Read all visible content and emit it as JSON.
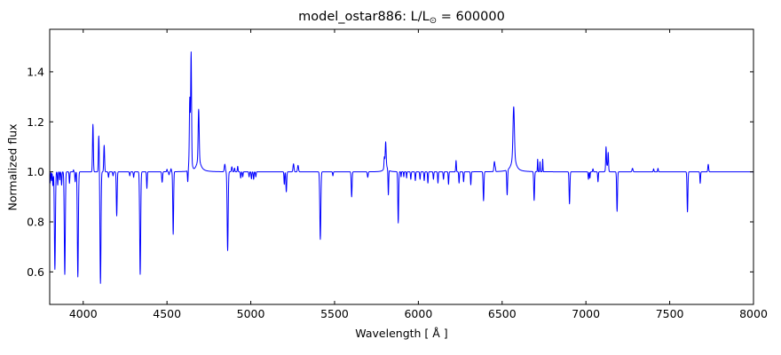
{
  "title": {
    "prefix": "model_ostar886: L/L",
    "subscript": "⊙",
    "suffix": " = 600000"
  },
  "chart_data": {
    "type": "line",
    "title": "model_ostar886: L/L_sun = 600000",
    "xlabel": "Wavelength [ Å ]",
    "ylabel": "Normalized flux",
    "xlim": [
      3800,
      8000
    ],
    "ylim": [
      0.47,
      1.57
    ],
    "x_ticks": [
      4000,
      4500,
      5000,
      5500,
      6000,
      6500,
      7000,
      7500,
      8000
    ],
    "x_tick_labels": [
      "4000",
      "4500",
      "5000",
      "5500",
      "6000",
      "6500",
      "7000",
      "7500",
      "8000"
    ],
    "y_ticks": [
      0.6,
      0.8,
      1.0,
      1.2,
      1.4
    ],
    "y_tick_labels": [
      "0.6",
      "0.8",
      "1.0",
      "1.2",
      "1.4"
    ],
    "grid": false,
    "legend": "none",
    "line_color": "#0000ff",
    "frame_color": "#000000",
    "continuum_flux": 1.0,
    "sample_step_angstrom": 1,
    "features": [
      {
        "name": "abs-3797",
        "c": 3797,
        "amp": -0.03,
        "sigma": 1.5,
        "profile": "gauss"
      },
      {
        "name": "abs-3802",
        "c": 3802,
        "amp": -0.045,
        "sigma": 2.0,
        "profile": "gauss"
      },
      {
        "name": "abs-3811",
        "c": 3811,
        "amp": -0.035,
        "sigma": 1.5,
        "profile": "gauss"
      },
      {
        "name": "abs-3819",
        "c": 3819,
        "amp": -0.055,
        "sigma": 2.0,
        "profile": "gauss"
      },
      {
        "name": "H9-3835",
        "c": 3831,
        "amp": -0.39,
        "sigma": 3.0,
        "profile": "gauss"
      },
      {
        "name": "abs-3848",
        "c": 3848,
        "amp": -0.053,
        "sigma": 2.0,
        "profile": "gauss"
      },
      {
        "name": "abs-3860",
        "c": 3860,
        "amp": -0.032,
        "sigma": 1.5,
        "profile": "gauss"
      },
      {
        "name": "abs-3871",
        "c": 3871,
        "amp": -0.053,
        "sigma": 2.0,
        "profile": "gauss"
      },
      {
        "name": "H8-3889",
        "c": 3890,
        "amp": -0.41,
        "sigma": 3.0,
        "profile": "gauss"
      },
      {
        "name": "abs-3918",
        "c": 3918,
        "amp": -0.046,
        "sigma": 2.0,
        "profile": "gauss"
      },
      {
        "name": "em-3942",
        "c": 3942,
        "amp": 0.008,
        "sigma": 1.5,
        "profile": "gauss"
      },
      {
        "name": "abs-3952",
        "c": 3952,
        "amp": -0.04,
        "sigma": 2.0,
        "profile": "gauss"
      },
      {
        "name": "Heps-3970",
        "c": 3968,
        "amp": -0.42,
        "sigma": 3.0,
        "profile": "gauss"
      },
      {
        "name": "NIV-4058-em",
        "c": 4058,
        "amp": 0.19,
        "sigma": 2.5,
        "profile": "gauss"
      },
      {
        "name": "SiIV-4089-em",
        "c": 4093,
        "amp": 0.145,
        "sigma": 2.5,
        "profile": "gauss"
      },
      {
        "name": "Hdelta-4101",
        "c": 4103,
        "amp": -0.446,
        "sigma": 3.0,
        "profile": "gauss"
      },
      {
        "name": "SiIV-4116-em",
        "c": 4125,
        "amp": 0.106,
        "sigma": 2.5,
        "profile": "gauss"
      },
      {
        "name": "abs-4151",
        "c": 4151,
        "amp": -0.022,
        "sigma": 2.0,
        "profile": "gauss"
      },
      {
        "name": "abs-4178",
        "c": 4178,
        "amp": -0.016,
        "sigma": 2.0,
        "profile": "gauss"
      },
      {
        "name": "HeII-4200",
        "c": 4200,
        "amp": -0.176,
        "sigma": 2.5,
        "profile": "gauss"
      },
      {
        "name": "abs-4278",
        "c": 4278,
        "amp": -0.016,
        "sigma": 2.0,
        "profile": "gauss"
      },
      {
        "name": "abs-4301",
        "c": 4301,
        "amp": -0.022,
        "sigma": 2.0,
        "profile": "gauss"
      },
      {
        "name": "Hgamma-4340",
        "c": 4340,
        "amp": -0.41,
        "sigma": 3.0,
        "profile": "gauss"
      },
      {
        "name": "abs-4380",
        "c": 4380,
        "amp": -0.066,
        "sigma": 2.0,
        "profile": "gauss"
      },
      {
        "name": "HeI-4471",
        "c": 4471,
        "amp": -0.042,
        "sigma": 2.5,
        "profile": "gauss"
      },
      {
        "name": "em-4500",
        "c": 4500,
        "amp": 0.01,
        "sigma": 2.0,
        "profile": "gauss"
      },
      {
        "name": "abs-4512",
        "c": 4512,
        "amp": -0.012,
        "sigma": 2.0,
        "profile": "gauss"
      },
      {
        "name": "em-4524",
        "c": 4524,
        "amp": 0.012,
        "sigma": 2.0,
        "profile": "gauss"
      },
      {
        "name": "HeII-4542",
        "c": 4537,
        "amp": -0.25,
        "sigma": 2.5,
        "profile": "gauss"
      },
      {
        "name": "abs-4624",
        "c": 4624,
        "amp": -0.05,
        "sigma": 2.0,
        "profile": "gauss"
      },
      {
        "name": "NIII-blend-base",
        "c": 4640,
        "amp": 0.06,
        "sigma": 8.0,
        "profile": "gauss"
      },
      {
        "name": "NIII-4634-em",
        "c": 4636,
        "amp": 0.24,
        "sigma": 2.5,
        "profile": "gauss"
      },
      {
        "name": "NIII-4640-em",
        "c": 4644,
        "amp": 0.42,
        "sigma": 2.5,
        "profile": "gauss"
      },
      {
        "name": "HeII-4686-em",
        "c": 4689,
        "amp": 0.2,
        "sigma": 3.0,
        "profile": "gauss"
      },
      {
        "name": "HeII-4686-wings",
        "c": 4689,
        "amp": 0.05,
        "sigma": 15.0,
        "profile": "lorentz"
      },
      {
        "name": "em-4845",
        "c": 4845,
        "amp": 0.03,
        "sigma": 3.0,
        "profile": "gauss"
      },
      {
        "name": "Hbeta-4861",
        "c": 4862,
        "amp": -0.315,
        "sigma": 3.0,
        "profile": "gauss"
      },
      {
        "name": "em-4887",
        "c": 4887,
        "amp": 0.02,
        "sigma": 2.5,
        "profile": "gauss"
      },
      {
        "name": "em-4903",
        "c": 4903,
        "amp": 0.015,
        "sigma": 2.0,
        "profile": "gauss"
      },
      {
        "name": "em-4922",
        "c": 4922,
        "amp": 0.022,
        "sigma": 2.0,
        "profile": "gauss"
      },
      {
        "name": "abs-4940",
        "c": 4940,
        "amp": -0.025,
        "sigma": 2.0,
        "profile": "gauss"
      },
      {
        "name": "abs-4952",
        "c": 4952,
        "amp": -0.02,
        "sigma": 2.0,
        "profile": "gauss"
      },
      {
        "name": "abs-4990",
        "c": 4990,
        "amp": -0.02,
        "sigma": 2.0,
        "profile": "gauss"
      },
      {
        "name": "abs-5004",
        "c": 5004,
        "amp": -0.028,
        "sigma": 2.0,
        "profile": "gauss"
      },
      {
        "name": "HeI-5015",
        "c": 5017,
        "amp": -0.03,
        "sigma": 2.0,
        "profile": "gauss"
      },
      {
        "name": "abs-5030",
        "c": 5030,
        "amp": -0.02,
        "sigma": 2.0,
        "profile": "gauss"
      },
      {
        "name": "abs-5200",
        "c": 5200,
        "amp": -0.05,
        "sigma": 2.0,
        "profile": "gauss"
      },
      {
        "name": "abs-5212",
        "c": 5212,
        "amp": -0.08,
        "sigma": 2.5,
        "profile": "gauss"
      },
      {
        "name": "em-5255",
        "c": 5255,
        "amp": 0.032,
        "sigma": 3.0,
        "profile": "gauss"
      },
      {
        "name": "em-5282",
        "c": 5282,
        "amp": 0.026,
        "sigma": 3.0,
        "profile": "gauss"
      },
      {
        "name": "HeII-5412",
        "c": 5415,
        "amp": -0.27,
        "sigma": 3.0,
        "profile": "gauss"
      },
      {
        "name": "abs-5490",
        "c": 5490,
        "amp": -0.016,
        "sigma": 2.0,
        "profile": "gauss"
      },
      {
        "name": "OIII-5592",
        "c": 5602,
        "amp": -0.1,
        "sigma": 2.5,
        "profile": "gauss"
      },
      {
        "name": "CIII-5696",
        "c": 5698,
        "amp": -0.022,
        "sigma": 2.5,
        "profile": "gauss"
      },
      {
        "name": "em-5797",
        "c": 5797,
        "amp": 0.04,
        "sigma": 2.0,
        "profile": "gauss"
      },
      {
        "name": "CIV-5801-em",
        "c": 5805,
        "amp": 0.08,
        "sigma": 2.5,
        "profile": "gauss"
      },
      {
        "name": "CIV-5801-wings",
        "c": 5805,
        "amp": 0.04,
        "sigma": 8.0,
        "profile": "lorentz"
      },
      {
        "name": "abs-5821",
        "c": 5821,
        "amp": -0.1,
        "sigma": 2.0,
        "profile": "gauss"
      },
      {
        "name": "HeI-5876",
        "c": 5880,
        "amp": -0.205,
        "sigma": 2.5,
        "profile": "gauss"
      },
      {
        "name": "abs-5897",
        "c": 5897,
        "amp": -0.02,
        "sigma": 1.5,
        "profile": "gauss"
      },
      {
        "name": "abs-5913",
        "c": 5913,
        "amp": -0.02,
        "sigma": 1.5,
        "profile": "gauss"
      },
      {
        "name": "abs-5930",
        "c": 5930,
        "amp": -0.025,
        "sigma": 1.5,
        "profile": "gauss"
      },
      {
        "name": "abs-5955",
        "c": 5955,
        "amp": -0.03,
        "sigma": 2.0,
        "profile": "gauss"
      },
      {
        "name": "abs-5982",
        "c": 5982,
        "amp": -0.035,
        "sigma": 2.0,
        "profile": "gauss"
      },
      {
        "name": "abs-6010",
        "c": 6010,
        "amp": -0.03,
        "sigma": 2.0,
        "profile": "gauss"
      },
      {
        "name": "abs-6035",
        "c": 6035,
        "amp": -0.035,
        "sigma": 2.0,
        "profile": "gauss"
      },
      {
        "name": "abs-6057",
        "c": 6057,
        "amp": -0.045,
        "sigma": 2.0,
        "profile": "gauss"
      },
      {
        "name": "abs-6090",
        "c": 6090,
        "amp": -0.03,
        "sigma": 2.0,
        "profile": "gauss"
      },
      {
        "name": "abs-6117",
        "c": 6117,
        "amp": -0.045,
        "sigma": 2.0,
        "profile": "gauss"
      },
      {
        "name": "abs-6150",
        "c": 6150,
        "amp": -0.03,
        "sigma": 2.0,
        "profile": "gauss"
      },
      {
        "name": "abs-6180",
        "c": 6180,
        "amp": -0.05,
        "sigma": 2.0,
        "profile": "gauss"
      },
      {
        "name": "em-6225",
        "c": 6225,
        "amp": 0.045,
        "sigma": 2.0,
        "profile": "gauss"
      },
      {
        "name": "abs-6243",
        "c": 6243,
        "amp": -0.045,
        "sigma": 2.0,
        "profile": "gauss"
      },
      {
        "name": "abs-6270",
        "c": 6270,
        "amp": -0.04,
        "sigma": 2.0,
        "profile": "gauss"
      },
      {
        "name": "abs-6313",
        "c": 6313,
        "amp": -0.052,
        "sigma": 2.0,
        "profile": "gauss"
      },
      {
        "name": "abs-6389",
        "c": 6389,
        "amp": -0.116,
        "sigma": 2.5,
        "profile": "gauss"
      },
      {
        "name": "em-6454",
        "c": 6454,
        "amp": 0.04,
        "sigma": 3.0,
        "profile": "gauss"
      },
      {
        "name": "em-6460",
        "c": 6460,
        "amp": 0.012,
        "sigma": 1.5,
        "profile": "gauss"
      },
      {
        "name": "abs-6530",
        "c": 6530,
        "amp": -0.1,
        "sigma": 2.5,
        "profile": "gauss"
      },
      {
        "name": "Halpha-6563-em",
        "c": 6569,
        "amp": 0.19,
        "sigma": 4.0,
        "profile": "gauss"
      },
      {
        "name": "Halpha-6563-wings",
        "c": 6569,
        "amp": 0.07,
        "sigma": 14.0,
        "profile": "lorentz"
      },
      {
        "name": "HeII-6683",
        "c": 6691,
        "amp": -0.115,
        "sigma": 2.5,
        "profile": "gauss"
      },
      {
        "name": "em-6712",
        "c": 6712,
        "amp": 0.05,
        "sigma": 1.5,
        "profile": "gauss"
      },
      {
        "name": "em-6726",
        "c": 6726,
        "amp": 0.04,
        "sigma": 1.5,
        "profile": "gauss"
      },
      {
        "name": "em-6742",
        "c": 6742,
        "amp": 0.05,
        "sigma": 1.5,
        "profile": "gauss"
      },
      {
        "name": "abs-6902",
        "c": 6902,
        "amp": -0.128,
        "sigma": 2.5,
        "profile": "gauss"
      },
      {
        "name": "abs-7015",
        "c": 7015,
        "amp": -0.03,
        "sigma": 2.0,
        "profile": "gauss"
      },
      {
        "name": "abs-7024",
        "c": 7024,
        "amp": -0.025,
        "sigma": 1.5,
        "profile": "gauss"
      },
      {
        "name": "em-7042",
        "c": 7042,
        "amp": 0.012,
        "sigma": 2.0,
        "profile": "gauss"
      },
      {
        "name": "HeI-7065",
        "c": 7072,
        "amp": -0.04,
        "sigma": 2.0,
        "profile": "gauss"
      },
      {
        "name": "em-7125-base",
        "c": 7126,
        "amp": 0.025,
        "sigma": 6.0,
        "profile": "gauss"
      },
      {
        "name": "em-7120",
        "c": 7120,
        "amp": 0.085,
        "sigma": 2.0,
        "profile": "gauss"
      },
      {
        "name": "em-7133",
        "c": 7133,
        "amp": 0.065,
        "sigma": 2.0,
        "profile": "gauss"
      },
      {
        "name": "abs-7186",
        "c": 7186,
        "amp": -0.158,
        "sigma": 2.5,
        "profile": "gauss"
      },
      {
        "name": "em-7278",
        "c": 7278,
        "amp": 0.014,
        "sigma": 3.0,
        "profile": "gauss"
      },
      {
        "name": "em-7404",
        "c": 7404,
        "amp": 0.012,
        "sigma": 2.0,
        "profile": "gauss"
      },
      {
        "name": "em-7430",
        "c": 7430,
        "amp": 0.014,
        "sigma": 2.0,
        "profile": "gauss"
      },
      {
        "name": "abs-7606",
        "c": 7606,
        "amp": -0.16,
        "sigma": 2.5,
        "profile": "gauss"
      },
      {
        "name": "abs-7682",
        "c": 7682,
        "amp": -0.046,
        "sigma": 2.0,
        "profile": "gauss"
      },
      {
        "name": "em-7730",
        "c": 7730,
        "amp": 0.03,
        "sigma": 2.5,
        "profile": "gauss"
      }
    ]
  }
}
